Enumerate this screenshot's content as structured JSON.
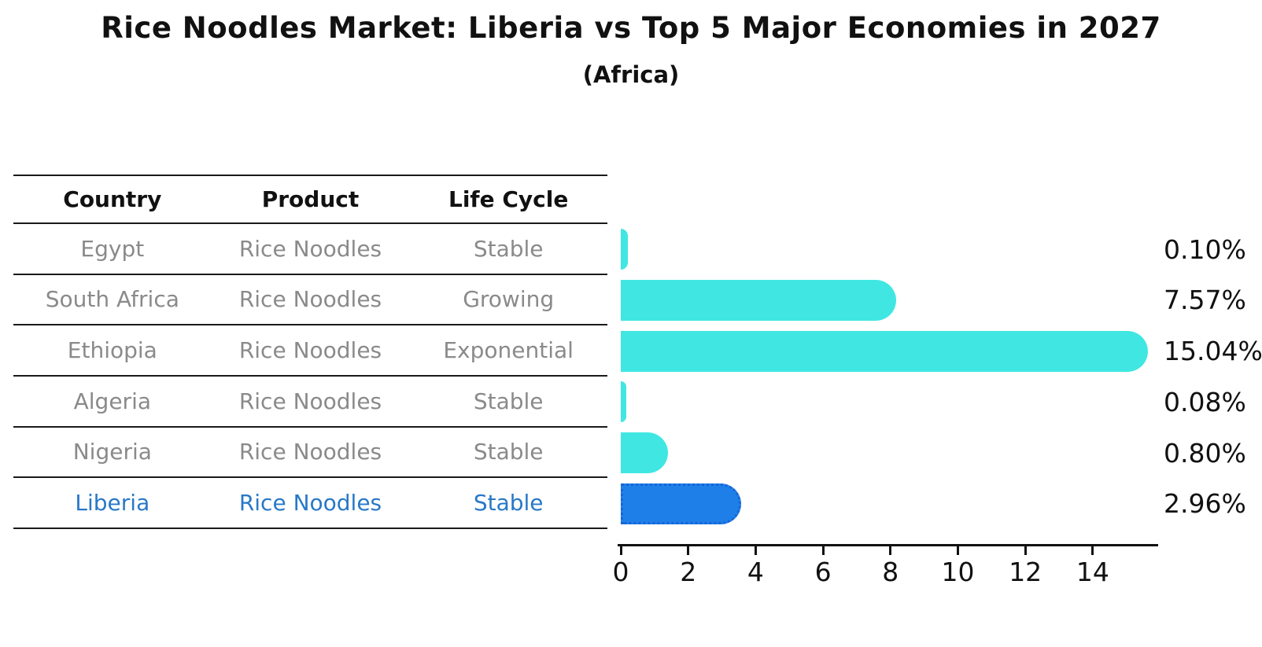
{
  "title": "Rice Noodles Market: Liberia vs Top 5 Major Economies in 2027",
  "subtitle": "(Africa)",
  "table": {
    "headers": [
      "Country",
      "Product",
      "Life Cycle"
    ],
    "rows": [
      {
        "country": "Egypt",
        "product": "Rice Noodles",
        "life_cycle": "Stable",
        "highlight": false
      },
      {
        "country": "South Africa",
        "product": "Rice Noodles",
        "life_cycle": "Growing",
        "highlight": false
      },
      {
        "country": "Ethiopia",
        "product": "Rice Noodles",
        "life_cycle": "Exponential",
        "highlight": false
      },
      {
        "country": "Algeria",
        "product": "Rice Noodles",
        "life_cycle": "Stable",
        "highlight": false
      },
      {
        "country": "Nigeria",
        "product": "Rice Noodles",
        "life_cycle": "Stable",
        "highlight": false
      },
      {
        "country": "Liberia",
        "product": "Rice Noodles",
        "life_cycle": "Stable",
        "highlight": true
      }
    ]
  },
  "chart_data": {
    "type": "bar",
    "orientation": "horizontal",
    "title": "Rice Noodles Market: Liberia vs Top 5 Major Economies in 2027",
    "subtitle": "(Africa)",
    "categories": [
      "Egypt",
      "South Africa",
      "Ethiopia",
      "Algeria",
      "Nigeria",
      "Liberia"
    ],
    "values": [
      0.1,
      7.57,
      15.04,
      0.08,
      0.8,
      2.96
    ],
    "value_labels": [
      "0.10%",
      "7.57%",
      "15.04%",
      "0.08%",
      "0.80%",
      "2.96%"
    ],
    "xticks": [
      0,
      2,
      4,
      6,
      8,
      10,
      12,
      14
    ],
    "xlim": [
      0,
      15.9
    ],
    "grid": false,
    "legend": false,
    "bar_color": "#40e7e2",
    "highlight_color": "#1f7fe8",
    "highlight_border_color": "#1565d8",
    "highlight_index": 5,
    "highlight_text_color": "#2878c8"
  }
}
